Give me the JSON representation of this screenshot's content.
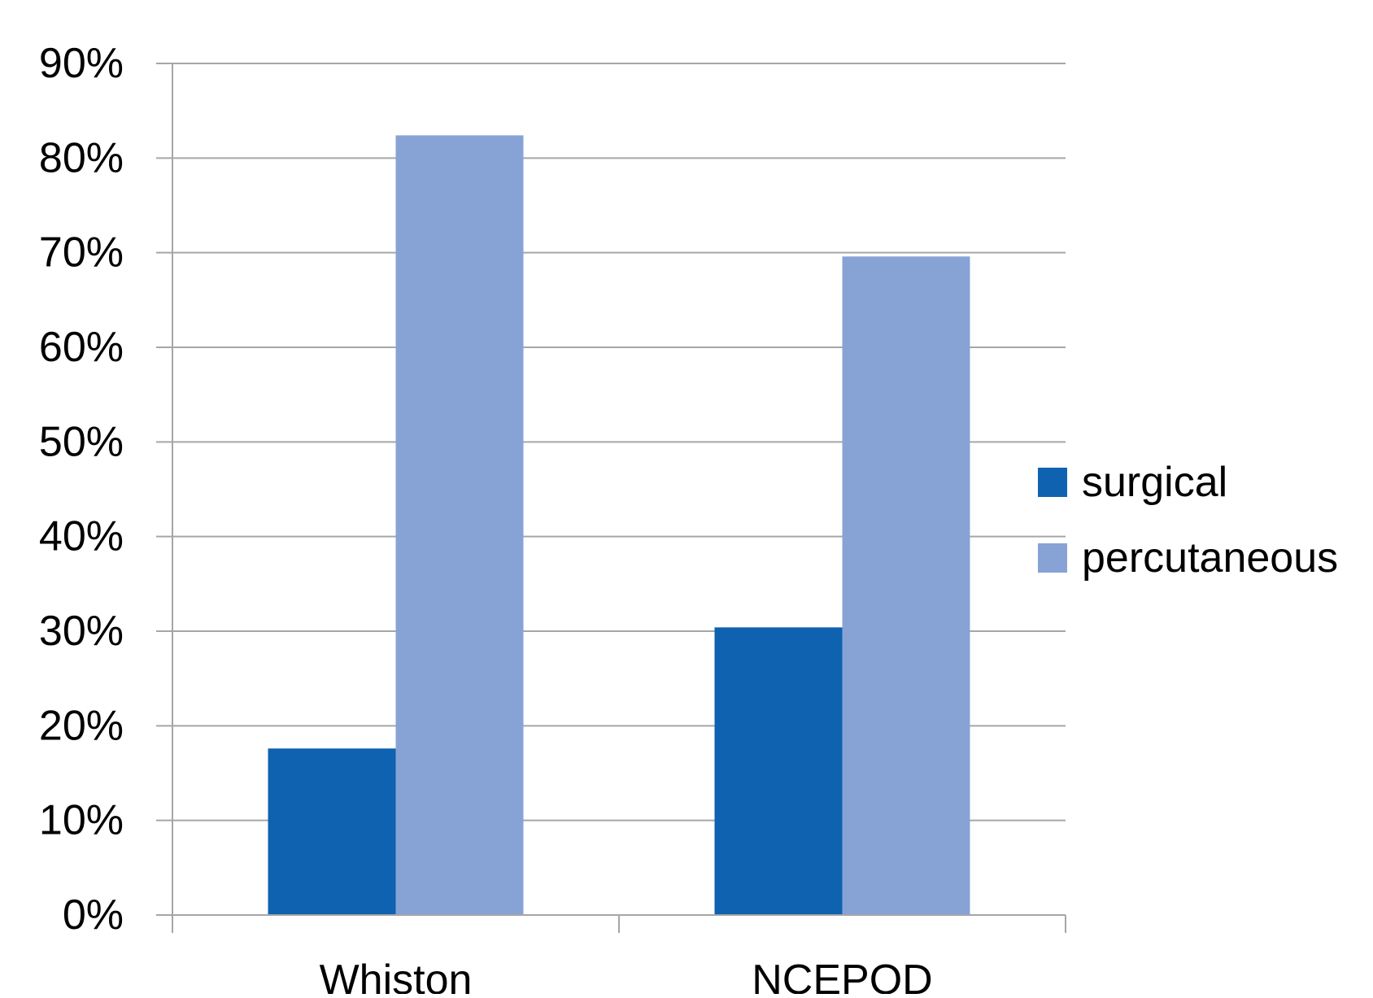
{
  "chart_data": {
    "type": "bar",
    "title": "",
    "xlabel": "",
    "ylabel": "",
    "categories": [
      "Whiston",
      "NCEPOD"
    ],
    "series": [
      {
        "name": "surgical",
        "values": [
          17.6,
          30.4
        ],
        "color": "#0e62b0"
      },
      {
        "name": "percutaneous",
        "values": [
          82.4,
          69.6
        ],
        "color": "#87a3d6"
      }
    ],
    "ylim": [
      0,
      90
    ],
    "yticks": [
      0,
      10,
      20,
      30,
      40,
      50,
      60,
      70,
      80,
      90
    ],
    "ytick_format": "percent",
    "grid": true,
    "gridline_color": "#a6a6a6",
    "legend_position": "right"
  }
}
